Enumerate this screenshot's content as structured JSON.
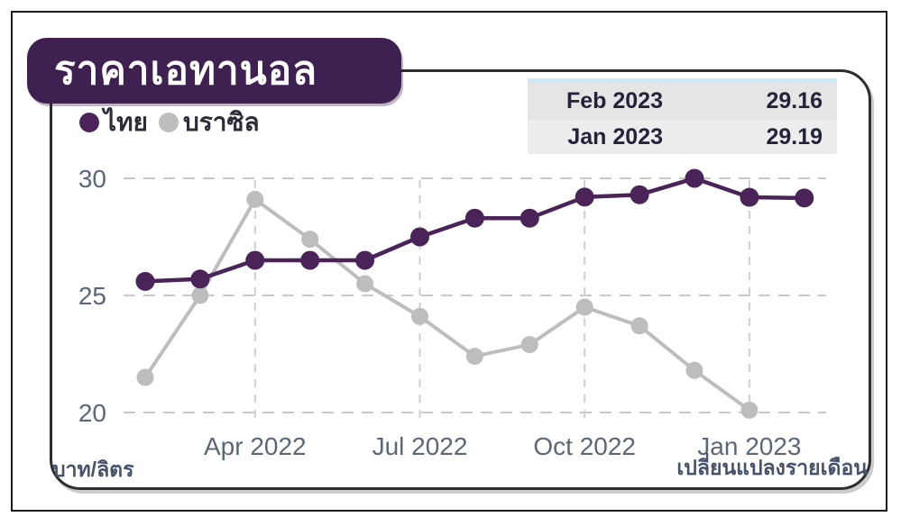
{
  "title": {
    "text": "ราคาเอทานอล"
  },
  "legend": {
    "items": [
      {
        "label": "ไทย",
        "color": "#4a2458"
      },
      {
        "label": "บราซิล",
        "color": "#bdbdbd"
      }
    ]
  },
  "callout_table": {
    "rows": [
      {
        "label": "Feb 2023",
        "value": "29.16"
      },
      {
        "label": "Jan 2023",
        "value": "29.19"
      }
    ]
  },
  "footnotes": {
    "left": "บาท/ลิตร",
    "right": "เปลี่ยนแปลงรายเดือน"
  },
  "colors": {
    "badge_purple": "#3e2151",
    "thai_series": "#4a2458",
    "brazil_series": "#bdbdbd",
    "axis_text": "#5b6777",
    "footnote_text": "#46536b",
    "gridline": "#c9c9c9",
    "table_accent_strip": "#cbe6f6",
    "table_row1_bg": "#e5e5e5",
    "table_row2_bg": "#ededed"
  },
  "chart_data": {
    "type": "line",
    "title": "ราคาเอทานอล",
    "ylabel": "บาท/ลิตร",
    "subtitle_note": "เปลี่ยนแปลงรายเดือน",
    "categories": [
      "Feb 2022",
      "Mar 2022",
      "Apr 2022",
      "May 2022",
      "Jun 2022",
      "Jul 2022",
      "Aug 2022",
      "Sep 2022",
      "Oct 2022",
      "Nov 2022",
      "Dec 2022",
      "Jan 2023",
      "Feb 2023"
    ],
    "series": [
      {
        "name": "ไทย",
        "color": "#4a2458",
        "stroke_width": 4.5,
        "dot_radius": 10.5,
        "values": [
          25.6,
          25.7,
          26.5,
          26.5,
          26.5,
          27.5,
          28.3,
          28.3,
          29.2,
          29.3,
          30.0,
          29.19,
          29.16
        ]
      },
      {
        "name": "บราซิล",
        "color": "#bdbdbd",
        "stroke_width": 4,
        "dot_radius": 9.5,
        "values": [
          21.5,
          25.0,
          29.1,
          27.4,
          25.5,
          24.1,
          22.4,
          22.9,
          24.5,
          23.7,
          21.8,
          20.1,
          null
        ]
      }
    ],
    "yticks": [
      30,
      25,
      20
    ],
    "xticks": [
      "Apr 2022",
      "Jul 2022",
      "Oct 2022",
      "Jan 2023"
    ],
    "ylim": [
      18.8,
      30.6
    ],
    "grid": true,
    "legend_position": "top-left"
  }
}
